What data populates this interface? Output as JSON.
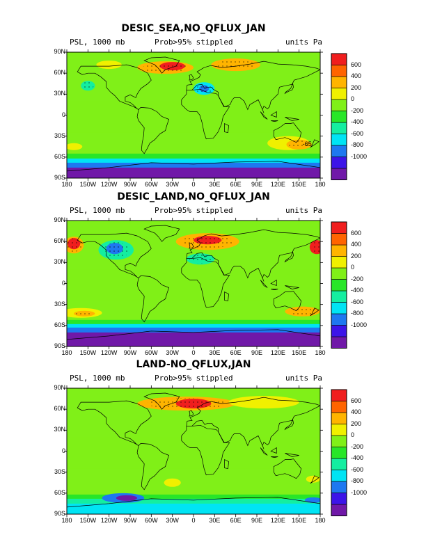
{
  "colors": {
    "scale": [
      "#7018a8",
      "#3c14e8",
      "#1e78f0",
      "#00e4f4",
      "#14eea0",
      "#28e628",
      "#80f018",
      "#f0f000",
      "#ffb400",
      "#ff6400",
      "#f01e1e"
    ]
  },
  "common": {
    "variable_label": "PSL, 1000 mb",
    "stipple_label": "Prob>95% stippled",
    "units_label": "units Pa",
    "lat_labels": [
      "90N",
      "60N",
      "30N",
      "0",
      "30S",
      "60S",
      "90S"
    ],
    "lon_labels": [
      "180",
      "150W",
      "120W",
      "90W",
      "60W",
      "30W",
      "0",
      "30E",
      "60E",
      "90E",
      "120E",
      "150E",
      "180"
    ],
    "colorbar_labels": [
      "600",
      "400",
      "200",
      "0",
      "-200",
      "-400",
      "-600",
      "-800",
      "-1000"
    ]
  },
  "panels": [
    {
      "title": "DESIC_SEA,NO_QFLUX_JAN",
      "annotation": "-65",
      "anomalies": [
        {
          "lon": -150,
          "lat": 42,
          "rx": 10,
          "ry": 7,
          "level": -400
        },
        {
          "lon": -120,
          "lat": 72,
          "rx": 18,
          "ry": 6,
          "level": 200
        },
        {
          "lon": -40,
          "lat": 68,
          "rx": 40,
          "ry": 9,
          "level": 400
        },
        {
          "lon": -30,
          "lat": 70,
          "rx": 18,
          "ry": 6,
          "level": 600
        },
        {
          "lon": 60,
          "lat": 72,
          "rx": 35,
          "ry": 9,
          "level": 400
        },
        {
          "lon": 15,
          "lat": 38,
          "rx": 15,
          "ry": 9,
          "level": -600
        },
        {
          "lon": 15,
          "lat": 38,
          "rx": 7,
          "ry": 5,
          "level": -800
        },
        {
          "lon": 135,
          "lat": -40,
          "rx": 30,
          "ry": 10,
          "level": 200
        },
        {
          "lon": 150,
          "lat": -42,
          "rx": 18,
          "ry": 7,
          "level": 400
        },
        {
          "lon": -170,
          "lat": -45,
          "rx": 12,
          "ry": 5,
          "level": 200
        }
      ],
      "southern_band": [
        {
          "lat": -55,
          "level": -200
        },
        {
          "lat": -62,
          "level": -600
        },
        {
          "lat": -68,
          "level": -800
        },
        {
          "lat": -75,
          "level": -1000
        }
      ]
    },
    {
      "title": "DESIC_LAND,NO_QFLUX_JAN",
      "annotation": "",
      "anomalies": [
        {
          "lon": -170,
          "lat": 55,
          "rx": 14,
          "ry": 12,
          "level": 400
        },
        {
          "lon": -170,
          "lat": 57,
          "rx": 9,
          "ry": 8,
          "level": 600
        },
        {
          "lon": 175,
          "lat": 52,
          "rx": 10,
          "ry": 10,
          "level": 600
        },
        {
          "lon": -110,
          "lat": 48,
          "rx": 25,
          "ry": 14,
          "level": -400
        },
        {
          "lon": -112,
          "lat": 50,
          "rx": 12,
          "ry": 8,
          "level": -800
        },
        {
          "lon": 20,
          "lat": 60,
          "rx": 45,
          "ry": 12,
          "level": 400
        },
        {
          "lon": 20,
          "lat": 62,
          "rx": 20,
          "ry": 6,
          "level": 600
        },
        {
          "lon": 10,
          "lat": 35,
          "rx": 20,
          "ry": 8,
          "level": -400
        },
        {
          "lon": -160,
          "lat": -42,
          "rx": 30,
          "ry": 7,
          "level": 200
        },
        {
          "lon": -155,
          "lat": -43,
          "rx": 15,
          "ry": 4,
          "level": 400
        },
        {
          "lon": 155,
          "lat": -40,
          "rx": 25,
          "ry": 7,
          "level": 400
        }
      ],
      "southern_band": [
        {
          "lat": -52,
          "level": -200
        },
        {
          "lat": -58,
          "level": -600
        },
        {
          "lat": -63,
          "level": -800
        },
        {
          "lat": -70,
          "level": -1000
        }
      ]
    },
    {
      "title": "LAND-NO_QFLUX,JAN",
      "annotation": "",
      "anomalies": [
        {
          "lon": -10,
          "lat": 68,
          "rx": 70,
          "ry": 10,
          "level": 400
        },
        {
          "lon": 0,
          "lat": 68,
          "rx": 25,
          "ry": 7,
          "level": 600
        },
        {
          "lon": 100,
          "lat": 70,
          "rx": 50,
          "ry": 9,
          "level": 200
        },
        {
          "lon": -30,
          "lat": -45,
          "rx": 12,
          "ry": 6,
          "level": 200
        },
        {
          "lon": 170,
          "lat": -40,
          "rx": 10,
          "ry": 5,
          "level": 200
        }
      ],
      "southern_band": [
        {
          "lat": -62,
          "level": -200
        },
        {
          "lat": -68,
          "level": -400
        },
        {
          "lat": -75,
          "level": -600
        }
      ],
      "southern_blobs": [
        {
          "lon": -100,
          "lat": -67,
          "rx": 30,
          "ry": 7,
          "level": -800
        },
        {
          "lon": -95,
          "lat": -67,
          "rx": 15,
          "ry": 4,
          "level": -1000
        },
        {
          "lon": 170,
          "lat": -70,
          "rx": 12,
          "ry": 4,
          "level": -800
        }
      ]
    }
  ]
}
